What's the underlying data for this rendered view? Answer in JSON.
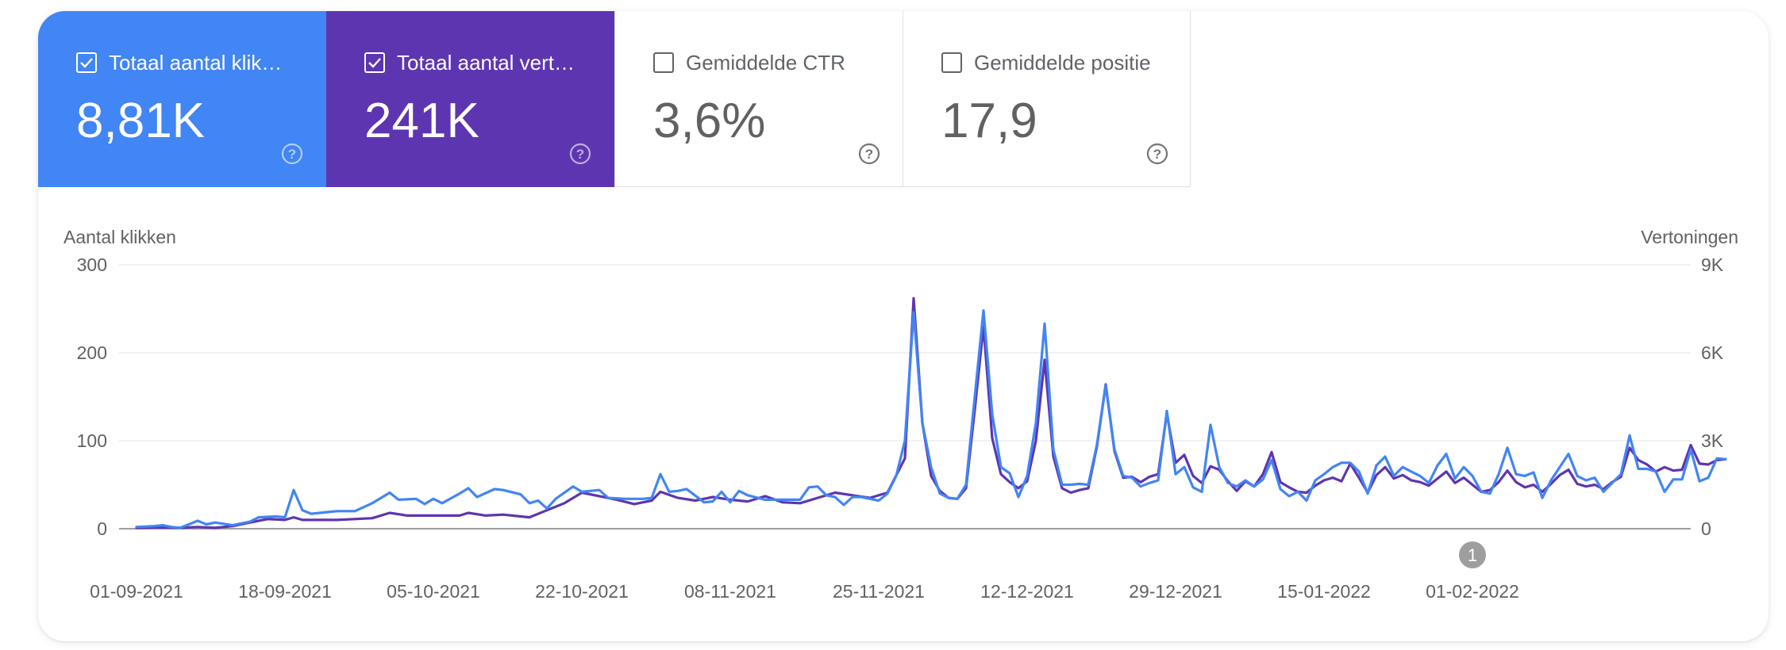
{
  "metrics": [
    {
      "label": "Totaal aantal klik…",
      "value": "8,81K",
      "checked": true,
      "color": "#4285f4"
    },
    {
      "label": "Totaal aantal vert…",
      "value": "241K",
      "checked": true,
      "color": "#5e35b1"
    },
    {
      "label": "Gemiddelde CTR",
      "value": "3,6%",
      "checked": false,
      "color": "#ffffff"
    },
    {
      "label": "Gemiddelde positie",
      "value": "17,9",
      "checked": false,
      "color": "#ffffff"
    }
  ],
  "annotation": {
    "label": "1",
    "date": "01-02-2022"
  },
  "chart_data": {
    "type": "line",
    "ylabel_left": "Aantal klikken",
    "ylabel_right": "Vertoningen",
    "ylim_left": [
      0,
      300
    ],
    "ylim_right": [
      0,
      9000
    ],
    "yticks_left": [
      "0",
      "100",
      "200",
      "300"
    ],
    "yticks_right": [
      "0",
      "3K",
      "6K",
      "9K"
    ],
    "xticks": [
      "01-09-2021",
      "18-09-2021",
      "05-10-2021",
      "22-10-2021",
      "08-11-2021",
      "25-11-2021",
      "12-12-2021",
      "29-12-2021",
      "15-01-2022",
      "01-02-2022"
    ],
    "x_start": "01-09-2021",
    "grid": true,
    "series": [
      {
        "name": "Totaal aantal klikken",
        "axis": "left",
        "color": "#4285f4",
        "values": [
          [
            0,
            2
          ],
          [
            2,
            3
          ],
          [
            3,
            4
          ],
          [
            4,
            2
          ],
          [
            5,
            1
          ],
          [
            7,
            9
          ],
          [
            8,
            5
          ],
          [
            9,
            7
          ],
          [
            11,
            4
          ],
          [
            13,
            8
          ],
          [
            14,
            13
          ],
          [
            16,
            14
          ],
          [
            17,
            13
          ],
          [
            18,
            44
          ],
          [
            19,
            21
          ],
          [
            20,
            17
          ],
          [
            22,
            19
          ],
          [
            23,
            20
          ],
          [
            25,
            20
          ],
          [
            27,
            29
          ],
          [
            29,
            41
          ],
          [
            30,
            33
          ],
          [
            32,
            34
          ],
          [
            33,
            28
          ],
          [
            34,
            34
          ],
          [
            35,
            29
          ],
          [
            37,
            40
          ],
          [
            38,
            46
          ],
          [
            39,
            36
          ],
          [
            41,
            45
          ],
          [
            42,
            44
          ],
          [
            44,
            39
          ],
          [
            45,
            29
          ],
          [
            46,
            32
          ],
          [
            47,
            23
          ],
          [
            48,
            34
          ],
          [
            50,
            48
          ],
          [
            51,
            42
          ],
          [
            53,
            44
          ],
          [
            54,
            35
          ],
          [
            56,
            34
          ],
          [
            58,
            34
          ],
          [
            59,
            35
          ],
          [
            60,
            62
          ],
          [
            61,
            42
          ],
          [
            62,
            43
          ],
          [
            63,
            45
          ],
          [
            65,
            30
          ],
          [
            66,
            31
          ],
          [
            67,
            42
          ],
          [
            68,
            30
          ],
          [
            69,
            43
          ],
          [
            70,
            38
          ],
          [
            72,
            33
          ],
          [
            74,
            33
          ],
          [
            76,
            33
          ],
          [
            77,
            47
          ],
          [
            78,
            48
          ],
          [
            79,
            38
          ],
          [
            80,
            36
          ],
          [
            81,
            27
          ],
          [
            82,
            36
          ],
          [
            83,
            36
          ],
          [
            85,
            32
          ],
          [
            86,
            40
          ],
          [
            87,
            60
          ],
          [
            88,
            100
          ],
          [
            89,
            246
          ],
          [
            90,
            120
          ],
          [
            91,
            70
          ],
          [
            92,
            40
          ],
          [
            93,
            35
          ],
          [
            94,
            34
          ],
          [
            95,
            50
          ],
          [
            96,
            150
          ],
          [
            97,
            248
          ],
          [
            98,
            130
          ],
          [
            99,
            70
          ],
          [
            100,
            63
          ],
          [
            101,
            36
          ],
          [
            102,
            60
          ],
          [
            103,
            120
          ],
          [
            104,
            233
          ],
          [
            105,
            90
          ],
          [
            106,
            50
          ],
          [
            107,
            50
          ],
          [
            108,
            51
          ],
          [
            109,
            50
          ],
          [
            110,
            96
          ],
          [
            111,
            163
          ],
          [
            112,
            90
          ],
          [
            113,
            60
          ],
          [
            114,
            58
          ],
          [
            115,
            48
          ],
          [
            116,
            52
          ],
          [
            117,
            55
          ],
          [
            118,
            134
          ],
          [
            119,
            62
          ],
          [
            120,
            70
          ],
          [
            121,
            47
          ],
          [
            122,
            42
          ],
          [
            123,
            118
          ],
          [
            124,
            70
          ],
          [
            125,
            52
          ],
          [
            126,
            48
          ],
          [
            127,
            55
          ],
          [
            128,
            48
          ],
          [
            129,
            56
          ],
          [
            130,
            78
          ],
          [
            131,
            45
          ],
          [
            132,
            37
          ],
          [
            133,
            42
          ],
          [
            134,
            32
          ],
          [
            135,
            55
          ],
          [
            136,
            62
          ],
          [
            137,
            70
          ],
          [
            138,
            75
          ],
          [
            139,
            75
          ],
          [
            140,
            65
          ],
          [
            141,
            40
          ],
          [
            142,
            72
          ],
          [
            143,
            82
          ],
          [
            144,
            60
          ],
          [
            145,
            70
          ],
          [
            146,
            65
          ],
          [
            147,
            60
          ],
          [
            148,
            52
          ],
          [
            149,
            72
          ],
          [
            150,
            85
          ],
          [
            151,
            57
          ],
          [
            152,
            70
          ],
          [
            153,
            60
          ],
          [
            154,
            42
          ],
          [
            155,
            40
          ],
          [
            156,
            62
          ],
          [
            157,
            92
          ],
          [
            158,
            62
          ],
          [
            159,
            60
          ],
          [
            160,
            64
          ],
          [
            161,
            35
          ],
          [
            162,
            55
          ],
          [
            163,
            70
          ],
          [
            164,
            85
          ],
          [
            165,
            60
          ],
          [
            166,
            55
          ],
          [
            167,
            58
          ],
          [
            168,
            42
          ],
          [
            169,
            52
          ],
          [
            170,
            62
          ],
          [
            171,
            106
          ],
          [
            172,
            68
          ],
          [
            173,
            68
          ],
          [
            174,
            65
          ],
          [
            175,
            42
          ],
          [
            176,
            56
          ],
          [
            177,
            56
          ],
          [
            178,
            90
          ],
          [
            179,
            54
          ],
          [
            180,
            58
          ],
          [
            181,
            80
          ],
          [
            182,
            79
          ]
        ]
      },
      {
        "name": "Totaal aantal vertoningen",
        "axis": "right",
        "color": "#5e35b1",
        "values": [
          [
            0,
            30
          ],
          [
            3,
            45
          ],
          [
            5,
            30
          ],
          [
            7,
            60
          ],
          [
            9,
            30
          ],
          [
            11,
            90
          ],
          [
            13,
            210
          ],
          [
            15,
            330
          ],
          [
            17,
            300
          ],
          [
            18,
            390
          ],
          [
            19,
            300
          ],
          [
            21,
            300
          ],
          [
            23,
            300
          ],
          [
            25,
            330
          ],
          [
            27,
            360
          ],
          [
            29,
            540
          ],
          [
            31,
            450
          ],
          [
            33,
            450
          ],
          [
            35,
            450
          ],
          [
            37,
            450
          ],
          [
            38,
            540
          ],
          [
            40,
            450
          ],
          [
            42,
            480
          ],
          [
            44,
            420
          ],
          [
            45,
            390
          ],
          [
            47,
            630
          ],
          [
            49,
            870
          ],
          [
            51,
            1230
          ],
          [
            53,
            1110
          ],
          [
            55,
            990
          ],
          [
            57,
            840
          ],
          [
            59,
            960
          ],
          [
            60,
            1260
          ],
          [
            62,
            1050
          ],
          [
            64,
            960
          ],
          [
            66,
            1080
          ],
          [
            68,
            990
          ],
          [
            70,
            930
          ],
          [
            72,
            1110
          ],
          [
            74,
            900
          ],
          [
            76,
            870
          ],
          [
            78,
            1050
          ],
          [
            80,
            1230
          ],
          [
            82,
            1140
          ],
          [
            84,
            1050
          ],
          [
            86,
            1230
          ],
          [
            88,
            2400
          ],
          [
            89,
            7860
          ],
          [
            90,
            3600
          ],
          [
            91,
            1800
          ],
          [
            92,
            1290
          ],
          [
            93,
            1050
          ],
          [
            94,
            1020
          ],
          [
            95,
            1380
          ],
          [
            96,
            4050
          ],
          [
            97,
            6900
          ],
          [
            98,
            3090
          ],
          [
            99,
            1860
          ],
          [
            100,
            1590
          ],
          [
            101,
            1380
          ],
          [
            102,
            1620
          ],
          [
            103,
            3000
          ],
          [
            104,
            5760
          ],
          [
            105,
            2460
          ],
          [
            106,
            1380
          ],
          [
            107,
            1230
          ],
          [
            108,
            1320
          ],
          [
            109,
            1380
          ],
          [
            110,
            2820
          ],
          [
            111,
            4920
          ],
          [
            112,
            2640
          ],
          [
            113,
            1740
          ],
          [
            114,
            1770
          ],
          [
            115,
            1590
          ],
          [
            116,
            1770
          ],
          [
            117,
            1860
          ],
          [
            118,
            3930
          ],
          [
            119,
            2250
          ],
          [
            120,
            2520
          ],
          [
            121,
            1800
          ],
          [
            122,
            1560
          ],
          [
            123,
            2130
          ],
          [
            124,
            2010
          ],
          [
            125,
            1620
          ],
          [
            126,
            1290
          ],
          [
            127,
            1620
          ],
          [
            128,
            1440
          ],
          [
            129,
            1860
          ],
          [
            130,
            2610
          ],
          [
            131,
            1590
          ],
          [
            132,
            1410
          ],
          [
            133,
            1260
          ],
          [
            134,
            1230
          ],
          [
            135,
            1470
          ],
          [
            136,
            1650
          ],
          [
            137,
            1740
          ],
          [
            138,
            1620
          ],
          [
            139,
            2220
          ],
          [
            140,
            1740
          ],
          [
            141,
            1230
          ],
          [
            142,
            1830
          ],
          [
            143,
            2100
          ],
          [
            144,
            1710
          ],
          [
            145,
            1830
          ],
          [
            146,
            1650
          ],
          [
            147,
            1590
          ],
          [
            148,
            1470
          ],
          [
            149,
            1710
          ],
          [
            150,
            1950
          ],
          [
            151,
            1560
          ],
          [
            152,
            1740
          ],
          [
            153,
            1500
          ],
          [
            154,
            1260
          ],
          [
            155,
            1320
          ],
          [
            156,
            1590
          ],
          [
            157,
            1980
          ],
          [
            158,
            1590
          ],
          [
            159,
            1410
          ],
          [
            160,
            1500
          ],
          [
            161,
            1260
          ],
          [
            162,
            1530
          ],
          [
            163,
            1830
          ],
          [
            164,
            2010
          ],
          [
            165,
            1530
          ],
          [
            166,
            1440
          ],
          [
            167,
            1500
          ],
          [
            168,
            1350
          ],
          [
            169,
            1590
          ],
          [
            170,
            1770
          ],
          [
            171,
            2760
          ],
          [
            172,
            2340
          ],
          [
            173,
            2190
          ],
          [
            174,
            1950
          ],
          [
            175,
            2100
          ],
          [
            176,
            1980
          ],
          [
            177,
            2010
          ],
          [
            178,
            2850
          ],
          [
            179,
            2220
          ],
          [
            180,
            2190
          ],
          [
            181,
            2340
          ],
          [
            182,
            2370
          ]
        ]
      }
    ]
  }
}
